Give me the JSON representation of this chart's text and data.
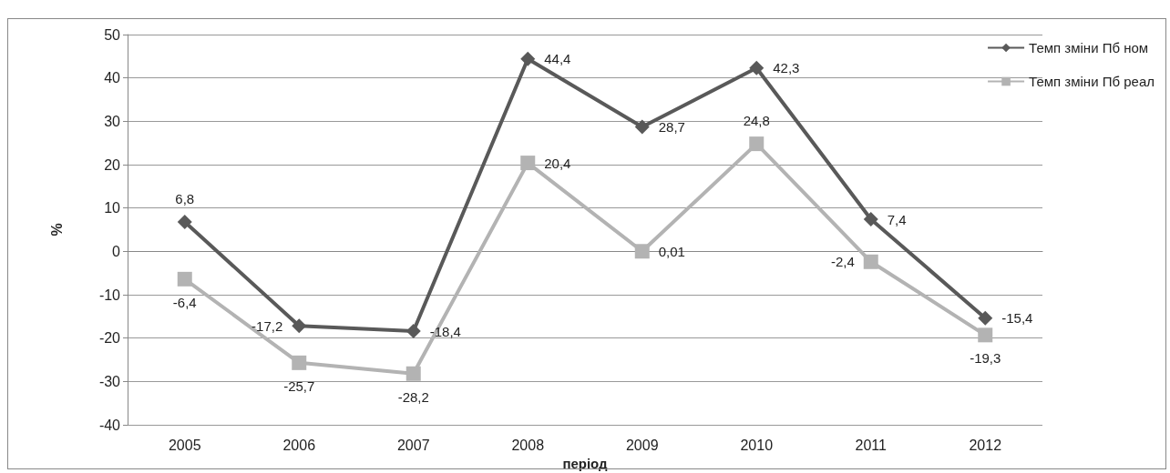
{
  "chart_data": {
    "type": "line",
    "xlabel": "період",
    "ylabel": "%",
    "categories": [
      "2005",
      "2006",
      "2007",
      "2008",
      "2009",
      "2010",
      "2011",
      "2012"
    ],
    "series": [
      {
        "name": "Темп зміни Пб ном",
        "color": "#595959",
        "marker": "diamond",
        "values": [
          6.8,
          -17.2,
          -18.4,
          44.4,
          28.7,
          42.3,
          7.4,
          -15.4
        ],
        "value_labels": [
          "6,8",
          "-17,2",
          "-18,4",
          "44,4",
          "28,7",
          "42,3",
          "7,4",
          "-15,4"
        ]
      },
      {
        "name": "Темп зміни Пб реал",
        "color": "#b3b3b3",
        "marker": "square",
        "values": [
          -6.4,
          -25.7,
          -28.2,
          20.4,
          0.01,
          24.8,
          -2.4,
          -19.3
        ],
        "value_labels": [
          "-6,4",
          "-25,7",
          "-28,2",
          "20,4",
          "0,01",
          "24,8",
          "-2,4",
          "-19,3"
        ]
      }
    ],
    "ylim": [
      -40,
      50
    ],
    "yticks": [
      -40,
      -30,
      -20,
      -10,
      0,
      10,
      20,
      30,
      40,
      50
    ],
    "grid": "y",
    "legend": "top right",
    "line_style": "solid"
  }
}
